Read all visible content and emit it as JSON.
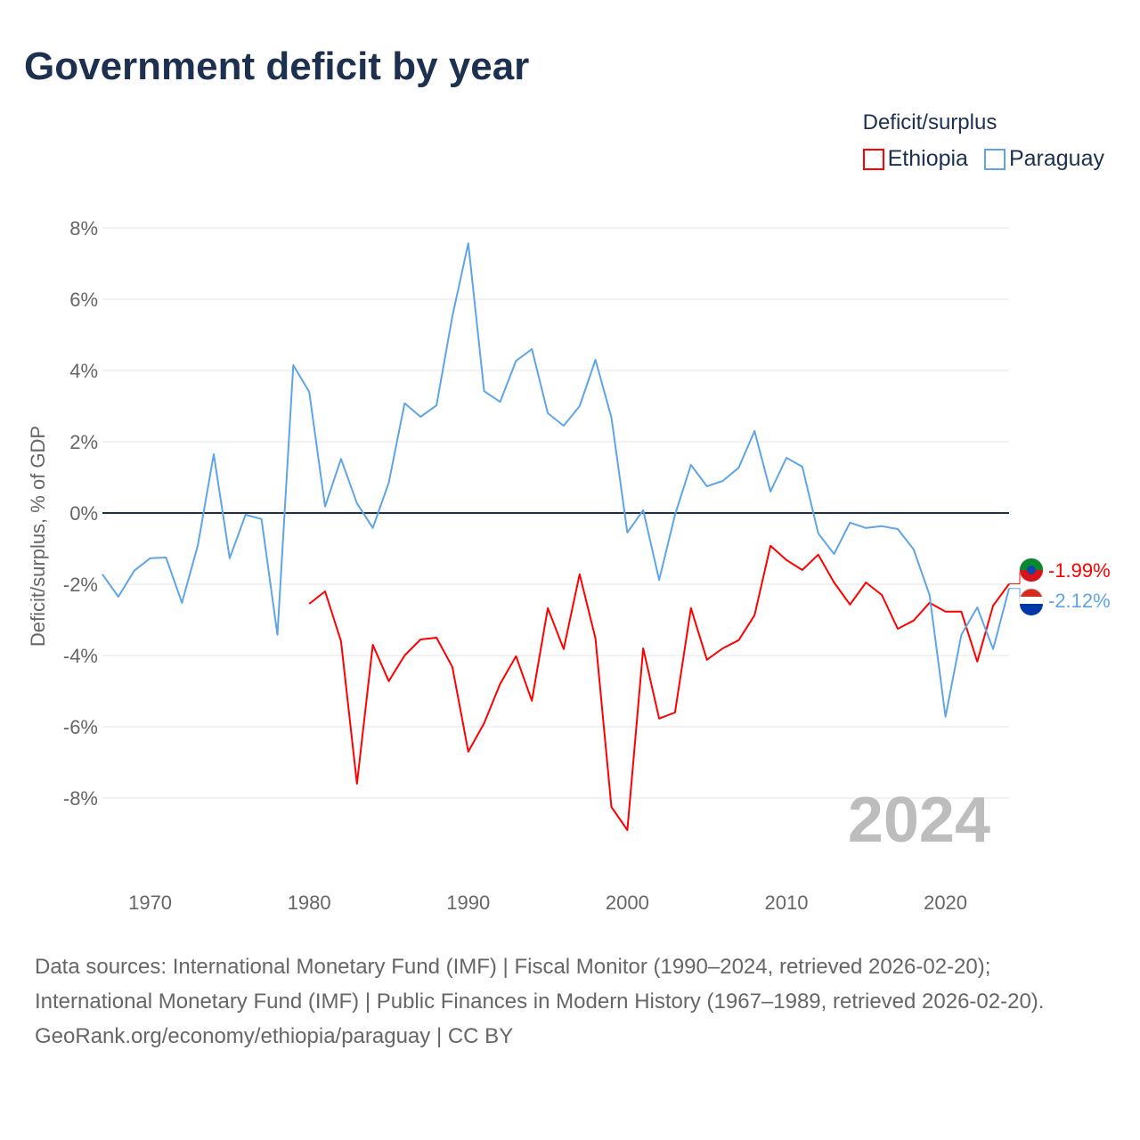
{
  "chart_data": {
    "type": "line",
    "title": "Government deficit by year",
    "ylabel": "Deficit/surplus, % of GDP",
    "xlabel": "",
    "ylim": [
      -10,
      8.5
    ],
    "xlim": [
      1967,
      2024
    ],
    "yticks": [
      8,
      6,
      4,
      2,
      0,
      -2,
      -4,
      -6,
      -8
    ],
    "ytick_labels": [
      "8%",
      "6%",
      "4%",
      "2%",
      "0%",
      "-2%",
      "-4%",
      "-6%",
      "-8%"
    ],
    "xticks": [
      1970,
      1980,
      1990,
      2000,
      2010,
      2020
    ],
    "xtick_labels": [
      "1970",
      "1980",
      "1990",
      "2000",
      "2010",
      "2020"
    ],
    "grid": true,
    "legend_title": "Deficit/surplus",
    "legend_position": "top-right",
    "year_watermark": "2024",
    "series": [
      {
        "name": "Ethiopia",
        "color": "#ff0000",
        "end_label": "-1.99%",
        "start_year": 1980,
        "values": [
          -2.55,
          -2.2,
          -3.6,
          -7.6,
          -3.7,
          -4.72,
          -4.0,
          -3.55,
          -3.5,
          -4.32,
          -6.7,
          -5.9,
          -4.8,
          -4.02,
          -5.27,
          -2.67,
          -3.82,
          -1.72,
          -3.52,
          -8.25,
          -8.9,
          -3.8,
          -5.77,
          -5.6,
          -2.67,
          -4.12,
          -3.8,
          -3.57,
          -2.87,
          -0.92,
          -1.32,
          -1.6,
          -1.17,
          -1.95,
          -2.57,
          -1.95,
          -2.3,
          -3.25,
          -3.02,
          -2.52,
          -2.77,
          -2.77,
          -4.17,
          -2.6,
          -1.99
        ]
      },
      {
        "name": "Paraguay",
        "color": "#5ea5e8",
        "end_label": "-2.12%",
        "start_year": 1967,
        "values": [
          -1.72,
          -2.35,
          -1.62,
          -1.27,
          -1.25,
          -2.52,
          -0.9,
          1.65,
          -1.27,
          -0.05,
          -0.17,
          -3.42,
          4.15,
          3.4,
          0.18,
          1.52,
          0.27,
          -0.42,
          0.85,
          3.08,
          2.7,
          3.02,
          5.52,
          7.57,
          3.42,
          3.12,
          4.27,
          4.6,
          2.8,
          2.45,
          3.0,
          4.3,
          2.68,
          -0.55,
          0.08,
          -1.88,
          -0.05,
          1.35,
          0.75,
          0.9,
          1.27,
          2.3,
          0.6,
          1.55,
          1.3,
          -0.57,
          -1.15,
          -0.27,
          -0.42,
          -0.37,
          -0.45,
          -1.02,
          -2.3,
          -5.72,
          -3.42,
          -2.65,
          -3.82,
          -2.12
        ]
      }
    ]
  },
  "footer": {
    "sources": "Data sources: International Monetary Fund (IMF) | Fiscal Monitor (1990–2024, retrieved 2026-02-20); International Monetary Fund (IMF) | Public Finances in Modern History (1967–1989, retrieved 2026-02-20).",
    "credit": "GeoRank.org/economy/ethiopia/paraguay | CC BY"
  }
}
